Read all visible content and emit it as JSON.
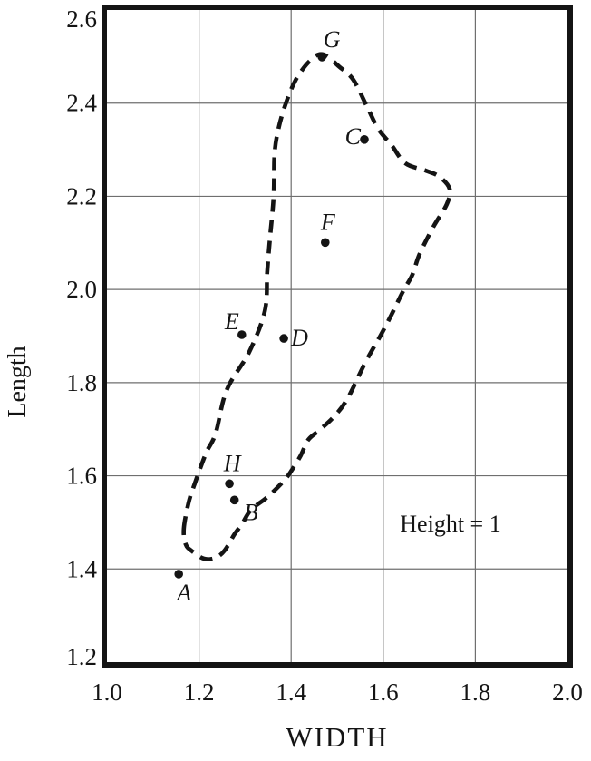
{
  "chart_data": {
    "type": "scatter",
    "title": "",
    "xlabel": "WIDTH",
    "ylabel": "Length",
    "xlim": [
      1.0,
      2.0
    ],
    "ylim": [
      1.2,
      2.6
    ],
    "grid": true,
    "legend": null,
    "x_ticks": {
      "values": [
        1.0,
        1.2,
        1.4,
        1.6,
        1.8,
        2.0
      ],
      "labels": [
        "1.0",
        "1.2",
        "1.4",
        "1.6",
        "1.8",
        "2.0"
      ]
    },
    "y_ticks": {
      "values": [
        1.2,
        1.4,
        1.6,
        1.8,
        2.0,
        2.2,
        2.4,
        2.6
      ],
      "labels": [
        "1.2",
        "1.4",
        "1.6",
        "1.8",
        "2.0",
        "2.2",
        "2.4",
        "2.6"
      ]
    },
    "points": [
      {
        "label": "A",
        "x": 1.156,
        "y": 1.389,
        "label_side": "below"
      },
      {
        "label": "B",
        "x": 1.277,
        "y": 1.548,
        "label_side": "below-right"
      },
      {
        "label": "C",
        "x": 1.559,
        "y": 2.322,
        "label_side": "left"
      },
      {
        "label": "D",
        "x": 1.384,
        "y": 1.895,
        "label_side": "right"
      },
      {
        "label": "E",
        "x": 1.293,
        "y": 1.903,
        "label_side": "above-left"
      },
      {
        "label": "F",
        "x": 1.474,
        "y": 2.101,
        "label_side": "above"
      },
      {
        "label": "G",
        "x": 1.467,
        "y": 2.499,
        "label_side": "above-right"
      },
      {
        "label": "H",
        "x": 1.266,
        "y": 1.583,
        "label_side": "above"
      }
    ],
    "annotation": {
      "text": "Height = 1",
      "x": 1.75,
      "y": 1.5
    },
    "contour_dashed": [
      [
        1.167,
        1.486
      ],
      [
        1.177,
        1.541
      ],
      [
        1.191,
        1.584
      ],
      [
        1.215,
        1.648
      ],
      [
        1.236,
        1.691
      ],
      [
        1.26,
        1.784
      ],
      [
        1.309,
        1.866
      ],
      [
        1.343,
        1.954
      ],
      [
        1.348,
        2.037
      ],
      [
        1.354,
        2.109
      ],
      [
        1.362,
        2.199
      ],
      [
        1.364,
        2.29
      ],
      [
        1.372,
        2.343
      ],
      [
        1.388,
        2.398
      ],
      [
        1.41,
        2.45
      ],
      [
        1.44,
        2.49
      ],
      [
        1.468,
        2.505
      ],
      [
        1.505,
        2.478
      ],
      [
        1.535,
        2.45
      ],
      [
        1.565,
        2.392
      ],
      [
        1.589,
        2.345
      ],
      [
        1.618,
        2.31
      ],
      [
        1.648,
        2.271
      ],
      [
        1.693,
        2.255
      ],
      [
        1.722,
        2.242
      ],
      [
        1.744,
        2.216
      ],
      [
        1.738,
        2.183
      ],
      [
        1.709,
        2.135
      ],
      [
        1.679,
        2.076
      ],
      [
        1.663,
        2.031
      ],
      [
        1.644,
        1.998
      ],
      [
        1.618,
        1.946
      ],
      [
        1.594,
        1.901
      ],
      [
        1.561,
        1.843
      ],
      [
        1.522,
        1.765
      ],
      [
        1.492,
        1.726
      ],
      [
        1.46,
        1.697
      ],
      [
        1.437,
        1.677
      ],
      [
        1.421,
        1.644
      ],
      [
        1.402,
        1.613
      ],
      [
        1.384,
        1.589
      ],
      [
        1.348,
        1.554
      ],
      [
        1.313,
        1.527
      ],
      [
        1.293,
        1.496
      ],
      [
        1.276,
        1.473
      ],
      [
        1.256,
        1.44
      ],
      [
        1.236,
        1.424
      ],
      [
        1.211,
        1.422
      ],
      [
        1.185,
        1.438
      ],
      [
        1.171,
        1.453
      ]
    ],
    "colors": {
      "ink": "#141414",
      "grid": "#6f6f6f",
      "background": "#ffffff"
    }
  }
}
